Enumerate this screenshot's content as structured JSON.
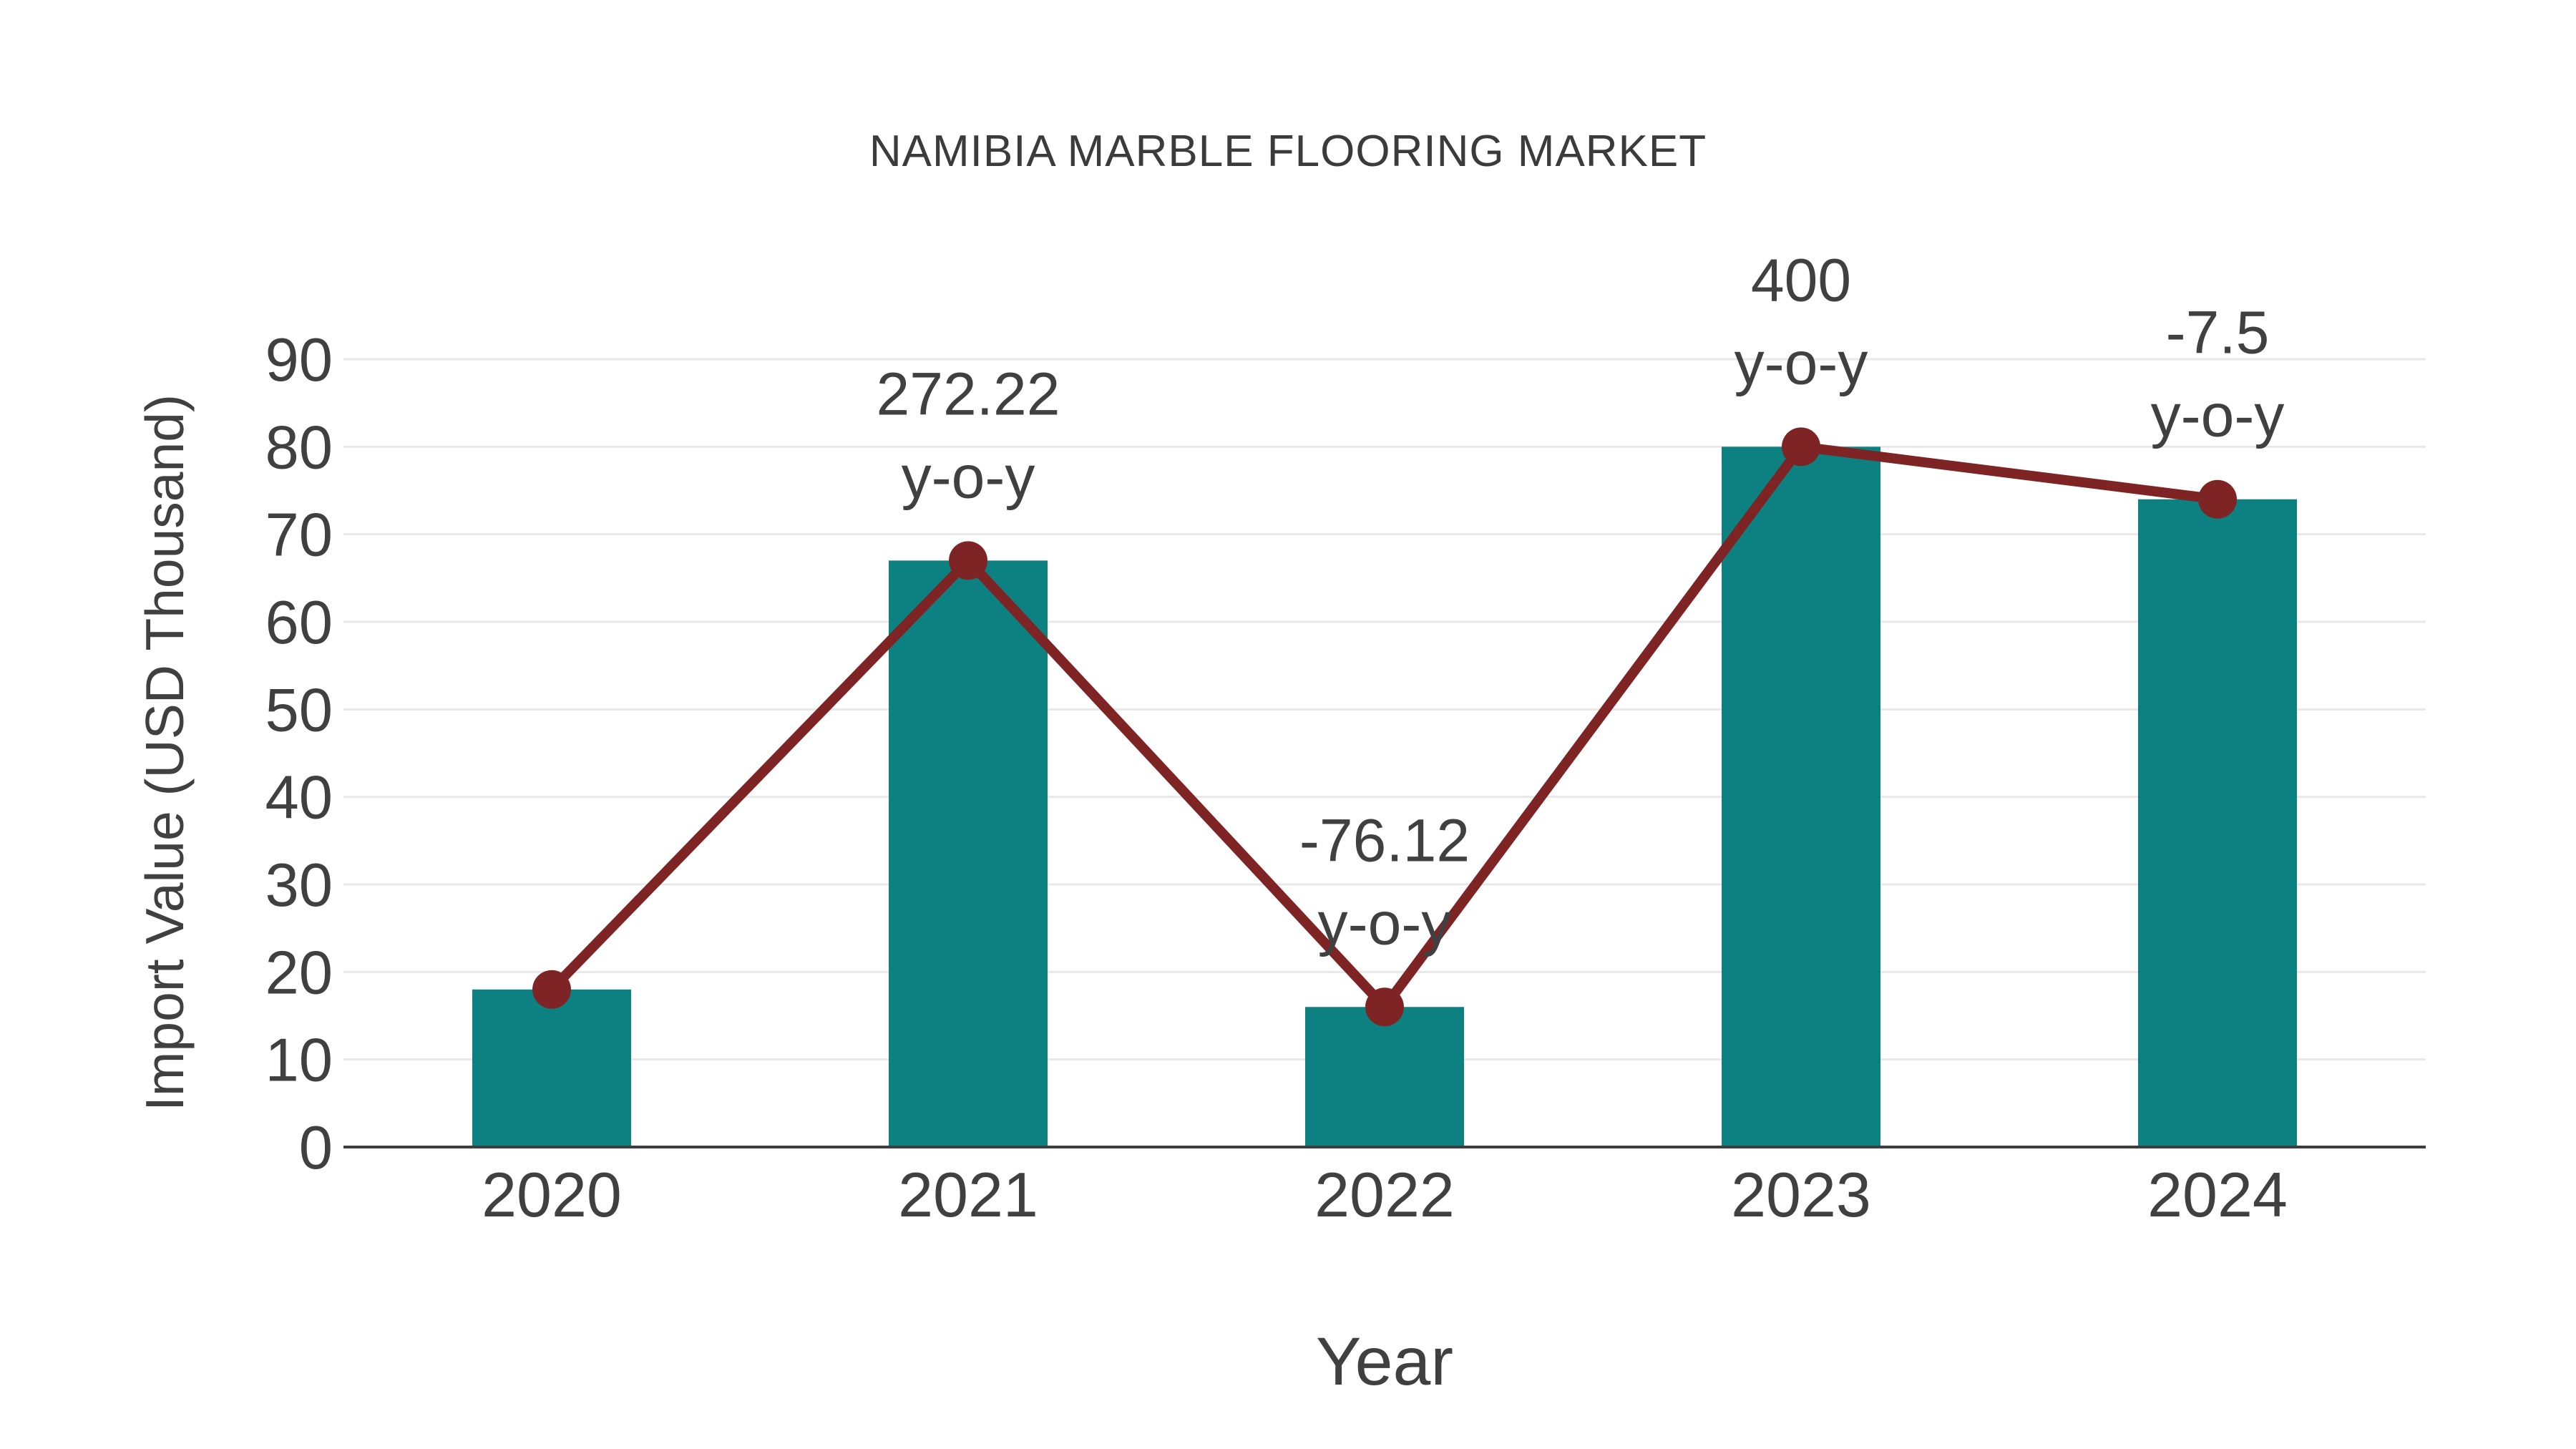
{
  "chart_data": {
    "type": "bar",
    "title": "NAMIBIA MARBLE FLOORING MARKET",
    "xlabel": "Year",
    "ylabel": "Import Value (USD Thousand)",
    "categories": [
      "2020",
      "2021",
      "2022",
      "2023",
      "2024"
    ],
    "series": [
      {
        "name": "import-value-bars",
        "type": "bar",
        "values": [
          18,
          67,
          16,
          80,
          74
        ]
      },
      {
        "name": "import-value-trend-line",
        "type": "line",
        "values": [
          18,
          67,
          16,
          80,
          74
        ]
      }
    ],
    "annotations": [
      {
        "category": "2021",
        "value_line": "272.22",
        "unit_line": "y-o-y"
      },
      {
        "category": "2022",
        "value_line": "-76.12",
        "unit_line": "y-o-y"
      },
      {
        "category": "2023",
        "value_line": "400",
        "unit_line": "y-o-y"
      },
      {
        "category": "2024",
        "value_line": "-7.5",
        "unit_line": "y-o-y"
      }
    ],
    "yticks": [
      0,
      10,
      20,
      30,
      40,
      50,
      60,
      70,
      80,
      90
    ],
    "ylim": [
      0,
      95
    ],
    "grid": true,
    "legend_position": "none",
    "colors": {
      "bar": "#0d8181",
      "line": "#7f2424",
      "marker": "#7f2424",
      "grid": "#e8e8e8",
      "axis": "#3d3d3d",
      "text": "#404040"
    }
  }
}
